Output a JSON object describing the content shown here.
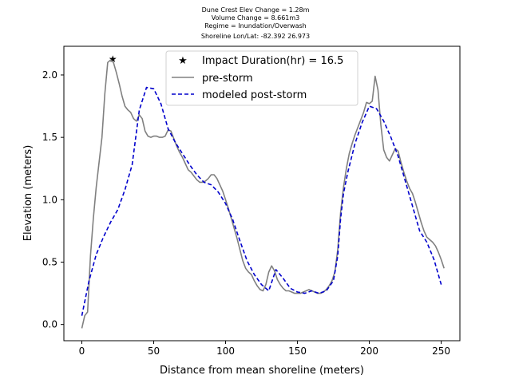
{
  "chart_data": {
    "type": "line",
    "title_lines": [
      "Dune Crest Elev Change = 1.28m",
      "Volume Change = 8.661m3",
      "Regime = Inundation/Overwash",
      "Shoreline Lon/Lat: -82.392 26.973"
    ],
    "xlabel": "Distance from mean shoreline (meters)",
    "ylabel": "Elevation (meters)",
    "xlim": [
      -12.5,
      263
    ],
    "ylim": [
      -0.13,
      2.23
    ],
    "xticks": [
      0,
      50,
      100,
      150,
      200,
      250
    ],
    "yticks": [
      0.0,
      0.5,
      1.0,
      1.5,
      2.0
    ],
    "xtick_labels": [
      "0",
      "50",
      "100",
      "150",
      "200",
      "250"
    ],
    "ytick_labels": [
      "0.0",
      "0.5",
      "1.0",
      "1.5",
      "2.0"
    ],
    "legend_position": "top-center",
    "grid": false,
    "series": [
      {
        "name": "Impact Duration(hr) = 16.5",
        "style": "star-marker",
        "color": "#ff0000",
        "x": [
          21.5
        ],
        "y": [
          2.13
        ]
      },
      {
        "name": "pre-storm",
        "style": "solid",
        "color": "#808080",
        "x": [
          0,
          2,
          4,
          6,
          8,
          10,
          12,
          14,
          16,
          18,
          20,
          22,
          24,
          26,
          28,
          30,
          32,
          34,
          36,
          38,
          40,
          42,
          44,
          46,
          48,
          50,
          52,
          54,
          56,
          58,
          60,
          62,
          64,
          66,
          68,
          70,
          72,
          74,
          76,
          78,
          80,
          82,
          84,
          86,
          88,
          90,
          92,
          94,
          96,
          98,
          100,
          102,
          104,
          106,
          108,
          110,
          112,
          114,
          116,
          118,
          120,
          122,
          124,
          126,
          128,
          130,
          132,
          134,
          136,
          138,
          140,
          142,
          144,
          146,
          148,
          150,
          152,
          154,
          156,
          158,
          160,
          162,
          164,
          166,
          168,
          170,
          172,
          174,
          176,
          178,
          180,
          182,
          184,
          186,
          188,
          190,
          192,
          194,
          196,
          198,
          200,
          202,
          204,
          206,
          208,
          210,
          212,
          214,
          216,
          218,
          220,
          222,
          224,
          226,
          228,
          230,
          232,
          234,
          236,
          238,
          240,
          242,
          244,
          246,
          248,
          250,
          252
        ],
        "y": [
          -0.03,
          0.07,
          0.1,
          0.55,
          0.85,
          1.1,
          1.3,
          1.5,
          1.85,
          2.1,
          2.12,
          2.1,
          2.02,
          1.93,
          1.83,
          1.75,
          1.72,
          1.7,
          1.65,
          1.63,
          1.68,
          1.65,
          1.55,
          1.51,
          1.5,
          1.51,
          1.51,
          1.5,
          1.5,
          1.51,
          1.56,
          1.55,
          1.49,
          1.43,
          1.38,
          1.34,
          1.29,
          1.24,
          1.22,
          1.19,
          1.16,
          1.14,
          1.14,
          1.15,
          1.17,
          1.2,
          1.2,
          1.17,
          1.12,
          1.07,
          1.0,
          0.93,
          0.85,
          0.77,
          0.69,
          0.6,
          0.51,
          0.45,
          0.42,
          0.4,
          0.35,
          0.31,
          0.28,
          0.27,
          0.32,
          0.42,
          0.47,
          0.43,
          0.36,
          0.32,
          0.29,
          0.27,
          0.27,
          0.26,
          0.25,
          0.25,
          0.25,
          0.26,
          0.27,
          0.28,
          0.27,
          0.26,
          0.25,
          0.25,
          0.26,
          0.28,
          0.31,
          0.35,
          0.42,
          0.6,
          0.9,
          1.1,
          1.25,
          1.37,
          1.45,
          1.52,
          1.58,
          1.64,
          1.7,
          1.78,
          1.77,
          1.79,
          1.99,
          1.88,
          1.6,
          1.4,
          1.34,
          1.31,
          1.36,
          1.41,
          1.39,
          1.3,
          1.22,
          1.15,
          1.09,
          1.05,
          0.98,
          0.9,
          0.82,
          0.75,
          0.7,
          0.68,
          0.66,
          0.63,
          0.58,
          0.52,
          0.45
        ]
      },
      {
        "name": "modeled post-storm",
        "style": "dashed",
        "color": "#0000cc",
        "x": [
          0,
          5,
          10,
          15,
          20,
          25,
          30,
          35,
          40,
          45,
          50,
          55,
          60,
          65,
          70,
          75,
          80,
          85,
          90,
          95,
          100,
          105,
          110,
          115,
          120,
          125,
          130,
          135,
          140,
          145,
          150,
          155,
          160,
          165,
          170,
          175,
          178,
          180,
          182,
          185,
          190,
          195,
          200,
          205,
          210,
          215,
          220,
          225,
          230,
          235,
          240,
          245,
          250
        ],
        "y": [
          0.07,
          0.35,
          0.56,
          0.7,
          0.82,
          0.92,
          1.08,
          1.28,
          1.72,
          1.9,
          1.89,
          1.77,
          1.57,
          1.46,
          1.37,
          1.28,
          1.2,
          1.14,
          1.12,
          1.06,
          0.97,
          0.84,
          0.67,
          0.51,
          0.4,
          0.32,
          0.27,
          0.44,
          0.37,
          0.29,
          0.26,
          0.25,
          0.27,
          0.25,
          0.27,
          0.35,
          0.55,
          0.85,
          1.05,
          1.22,
          1.45,
          1.62,
          1.75,
          1.73,
          1.63,
          1.5,
          1.35,
          1.15,
          0.95,
          0.75,
          0.66,
          0.52,
          0.32
        ]
      }
    ]
  }
}
